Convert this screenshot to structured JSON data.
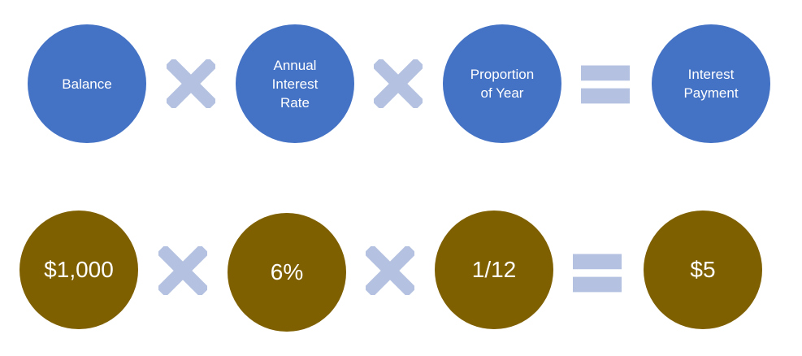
{
  "colors": {
    "top_circle": "#4472c4",
    "bottom_circle": "#7f6000",
    "operator": "#b4c1e0",
    "text": "#ffffff"
  },
  "formula": {
    "terms": [
      {
        "label": "Balance",
        "value": "$1,000"
      },
      {
        "label": "Annual\nInterest\nRate",
        "value": "6%"
      },
      {
        "label": "Proportion\nof Year",
        "value": "1/12"
      },
      {
        "label": "Interest\nPayment",
        "value": "$5"
      }
    ],
    "operators": [
      "times-icon",
      "times-icon",
      "equals-icon"
    ]
  }
}
